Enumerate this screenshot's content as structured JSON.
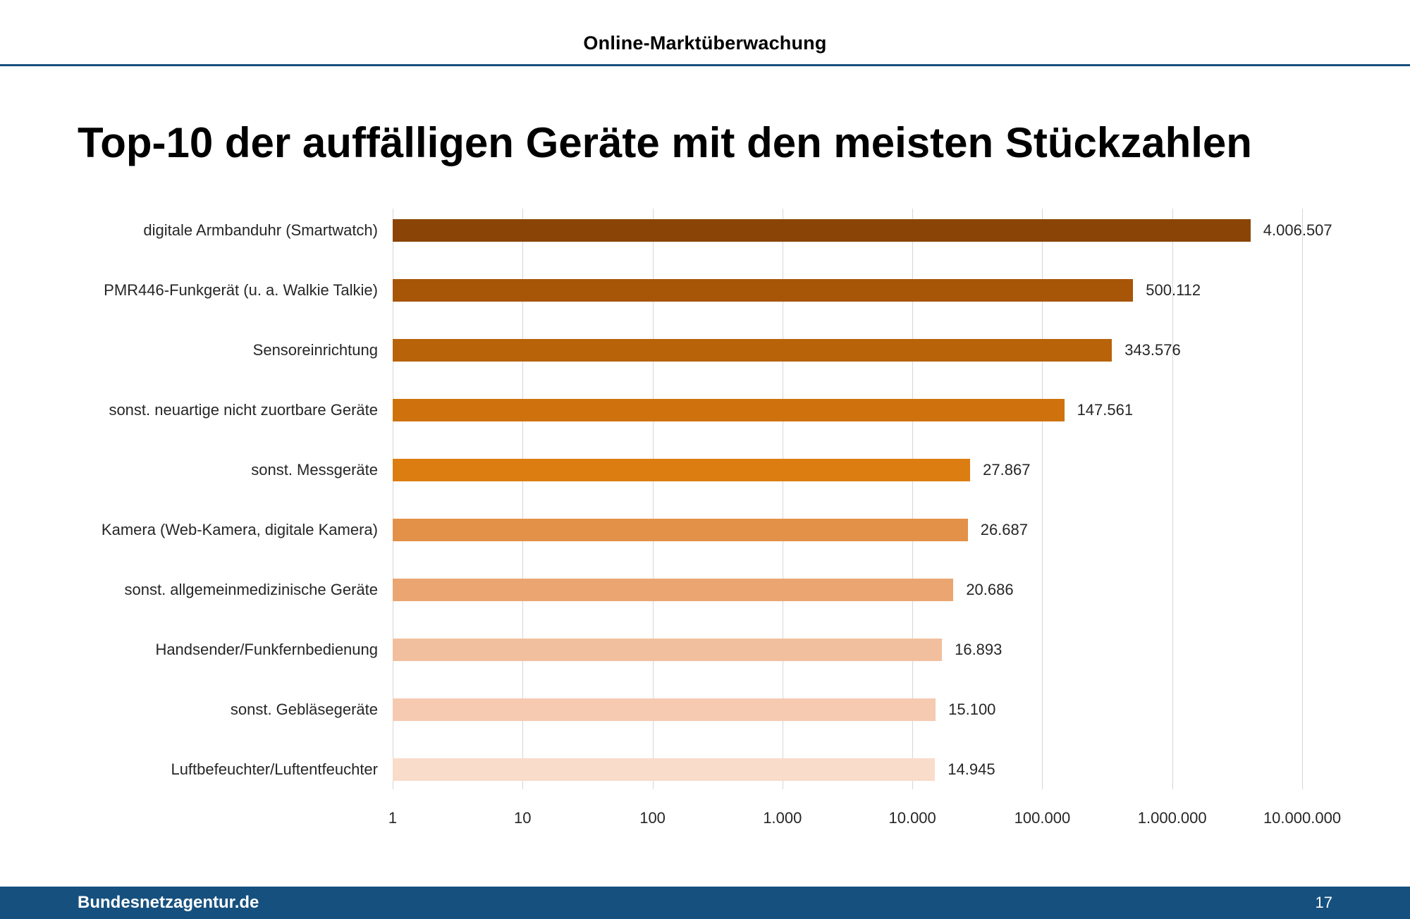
{
  "header": {
    "title": "Online-Marktüberwachung"
  },
  "slide": {
    "title": "Top-10 der auffälligen Geräte mit den meisten Stückzahlen"
  },
  "footer": {
    "site": "Bundesnetzagentur.de",
    "page": "17"
  },
  "colors": {
    "accent_blue": "#16507e",
    "grid_gray": "#d6d6d6",
    "bar_colors": [
      "#8a4506",
      "#a75507",
      "#b86309",
      "#cf720e",
      "#dc7d12",
      "#e39049",
      "#eaa571",
      "#f2bf9e",
      "#f5cab0",
      "#f9dcca"
    ]
  },
  "chart_data": {
    "type": "bar",
    "orientation": "horizontal",
    "x_scale": "log",
    "title": "Top-10 der auffälligen Geräte mit den meisten Stückzahlen",
    "xlabel": "",
    "ylabel": "",
    "xlim": [
      1,
      10000000
    ],
    "grid": true,
    "legend": false,
    "categories": [
      "digitale Armbanduhr (Smartwatch)",
      "PMR446-Funkgerät (u. a. Walkie Talkie)",
      "Sensoreinrichtung",
      "sonst. neuartige nicht zuortbare Geräte",
      "sonst. Messgeräte",
      "Kamera (Web-Kamera, digitale Kamera)",
      "sonst. allgemeinmedizinische Geräte",
      "Handsender/Funkfernbedienung",
      "sonst. Gebläsegeräte",
      "Luftbefeuchter/Luftentfeuchter"
    ],
    "values": [
      4006507,
      500112,
      343576,
      147561,
      27867,
      26687,
      20686,
      16893,
      15100,
      14945
    ],
    "value_labels": [
      "4.006.507",
      "500.112",
      "343.576",
      "147.561",
      "27.867",
      "26.687",
      "20.686",
      "16.893",
      "15.100",
      "14.945"
    ],
    "x_ticks": [
      1,
      10,
      100,
      1000,
      10000,
      100000,
      1000000,
      10000000
    ],
    "x_tick_labels": [
      "1",
      "10",
      "100",
      "1.000",
      "10.000",
      "100.000",
      "1.000.000",
      "10.000.000"
    ],
    "bar_colors": [
      "#8a4506",
      "#a75507",
      "#b86309",
      "#cf720e",
      "#dc7d12",
      "#e39049",
      "#eaa571",
      "#f2bf9e",
      "#f5cab0",
      "#f9dcca"
    ]
  }
}
